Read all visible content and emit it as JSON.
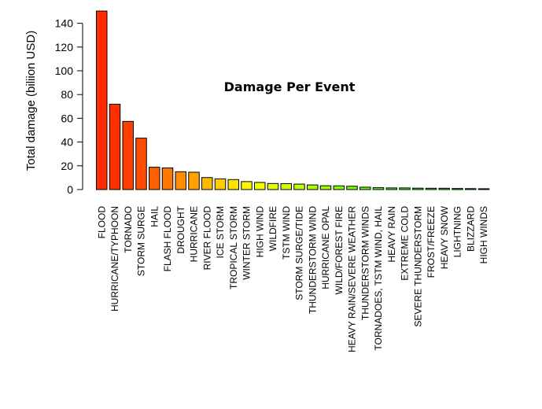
{
  "chart_data": {
    "type": "bar",
    "title": "Damage Per Event",
    "xlabel": "",
    "ylabel": "Total damage (biliion USD)",
    "ylim": [
      0,
      150
    ],
    "yticks": [
      0,
      20,
      40,
      60,
      80,
      100,
      120,
      140
    ],
    "grid": false,
    "categories": [
      "FLOOD",
      "HURRICANE/TYPHOON",
      "TORNADO",
      "STORM SURGE",
      "HAIL",
      "FLASH FLOOD",
      "DROUGHT",
      "HURRICANE",
      "RIVER FLOOD",
      "ICE STORM",
      "TROPICAL STORM",
      "WINTER STORM",
      "HIGH WIND",
      "WILDFIRE",
      "TSTM WIND",
      "STORM SURGE/TIDE",
      "THUNDERSTORM WIND",
      "HURRICANE OPAL",
      "WILD/FOREST FIRE",
      "HEAVY RAIN/SEVERE WEATHER",
      "THUNDERSTORM WINDS",
      "TORNADOES, TSTM WIND, HAIL",
      "HEAVY RAIN",
      "EXTREME COLD",
      "SEVERE THUNDERSTORM",
      "FROST/FREEZE",
      "HEAVY SNOW",
      "LIGHTNING",
      "BLIZZARD",
      "HIGH WINDS"
    ],
    "values": [
      150.3,
      71.9,
      57.4,
      43.3,
      18.8,
      18.2,
      15.0,
      14.6,
      10.1,
      9.0,
      8.4,
      6.7,
      6.0,
      5.1,
      5.0,
      4.6,
      3.9,
      3.2,
      3.1,
      2.8,
      2.0,
      1.6,
      1.4,
      1.4,
      1.2,
      1.1,
      1.1,
      0.9,
      0.8,
      0.7
    ],
    "colors": [
      "#ff2a00",
      "#ff3000",
      "#ff3e00",
      "#ff4c00",
      "#ff6000",
      "#ff7600",
      "#ff8c00",
      "#ffa200",
      "#ffb800",
      "#ffcd00",
      "#ffe200",
      "#fff500",
      "#f0ff00",
      "#e0ff00",
      "#d0ff00",
      "#c0ff00",
      "#aeff00",
      "#9cff00",
      "#8aff00",
      "#78ff00",
      "#66ff00",
      "#54ff00",
      "#44ff00",
      "#34ff00",
      "#26ff00",
      "#18ff00",
      "#0cff00",
      "#00ff00",
      "#00ff00",
      "#00ff00"
    ]
  }
}
